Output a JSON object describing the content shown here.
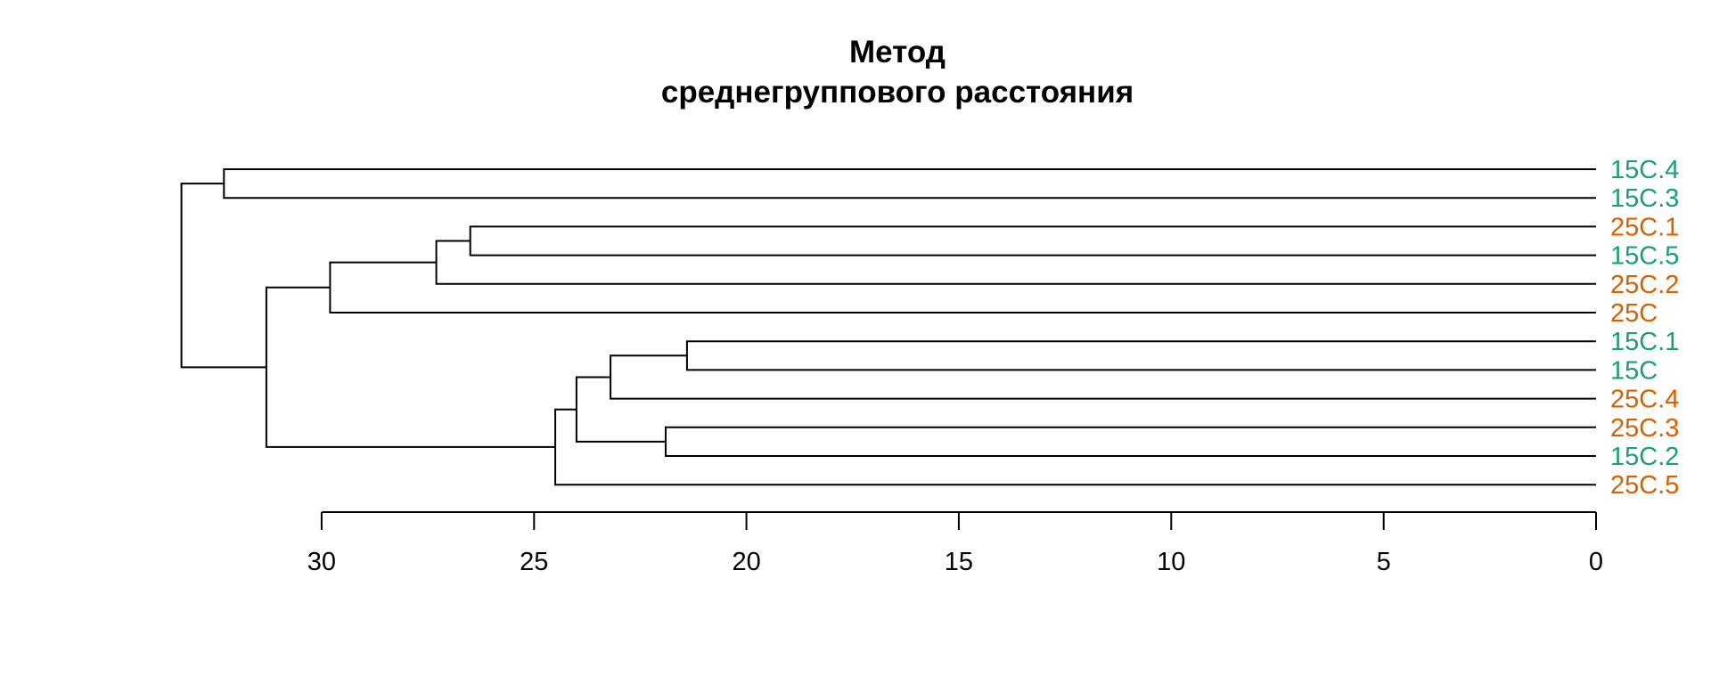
{
  "chart_data": {
    "type": "dendrogram",
    "title_lines": [
      "Метод",
      "среднегруппового расстояния"
    ],
    "orientation": "horizontal",
    "axis": {
      "range": [
        30,
        0
      ],
      "ticks": [
        30,
        25,
        20,
        15,
        10,
        5,
        0
      ],
      "tick_labels": [
        "30",
        "25",
        "20",
        "15",
        "10",
        "5",
        "0"
      ]
    },
    "groups": [
      {
        "name": "15C",
        "color": "#1b9e77"
      },
      {
        "name": "25C",
        "color": "#d95f02"
      }
    ],
    "leaves": [
      {
        "label": "15C.4",
        "group": "15C",
        "color": "#1b9e77"
      },
      {
        "label": "15C.3",
        "group": "15C",
        "color": "#1b9e77"
      },
      {
        "label": "25C.1",
        "group": "25C",
        "color": "#d95f02"
      },
      {
        "label": "15C.5",
        "group": "15C",
        "color": "#1b9e77"
      },
      {
        "label": "25C.2",
        "group": "25C",
        "color": "#d95f02"
      },
      {
        "label": "25C",
        "group": "25C",
        "color": "#d95f02"
      },
      {
        "label": "15C.1",
        "group": "15C",
        "color": "#1b9e77"
      },
      {
        "label": "15C",
        "group": "15C",
        "color": "#1b9e77"
      },
      {
        "label": "25C.4",
        "group": "25C",
        "color": "#d95f02"
      },
      {
        "label": "25C.3",
        "group": "25C",
        "color": "#d95f02"
      },
      {
        "label": "15C.2",
        "group": "15C",
        "color": "#1b9e77"
      },
      {
        "label": "25C.5",
        "group": "25C",
        "color": "#d95f02"
      }
    ],
    "merges": [
      {
        "id": "m1",
        "left": "25C.1",
        "right": "15C.5",
        "height": 26.5
      },
      {
        "id": "m2",
        "left": "m1",
        "right": "25C.2",
        "height": 27.3
      },
      {
        "id": "m3",
        "left": "m2",
        "right": "25C",
        "height": 29.8
      },
      {
        "id": "m4",
        "left": "15C.1",
        "right": "15C",
        "height": 21.4
      },
      {
        "id": "m5",
        "left": "m4",
        "right": "25C.4",
        "height": 23.2
      },
      {
        "id": "m6",
        "left": "25C.3",
        "right": "15C.2",
        "height": 21.9
      },
      {
        "id": "m7",
        "left": "m5",
        "right": "m6",
        "height": 24.0
      },
      {
        "id": "m8",
        "left": "m7",
        "right": "25C.5",
        "height": 24.5
      },
      {
        "id": "m9",
        "left": "m3",
        "right": "m8",
        "height": 31.3
      },
      {
        "id": "m10",
        "left": "15C.4",
        "right": "15C.3",
        "height": 32.3
      },
      {
        "id": "m11",
        "left": "m10",
        "right": "m9",
        "height": 33.3
      }
    ]
  }
}
